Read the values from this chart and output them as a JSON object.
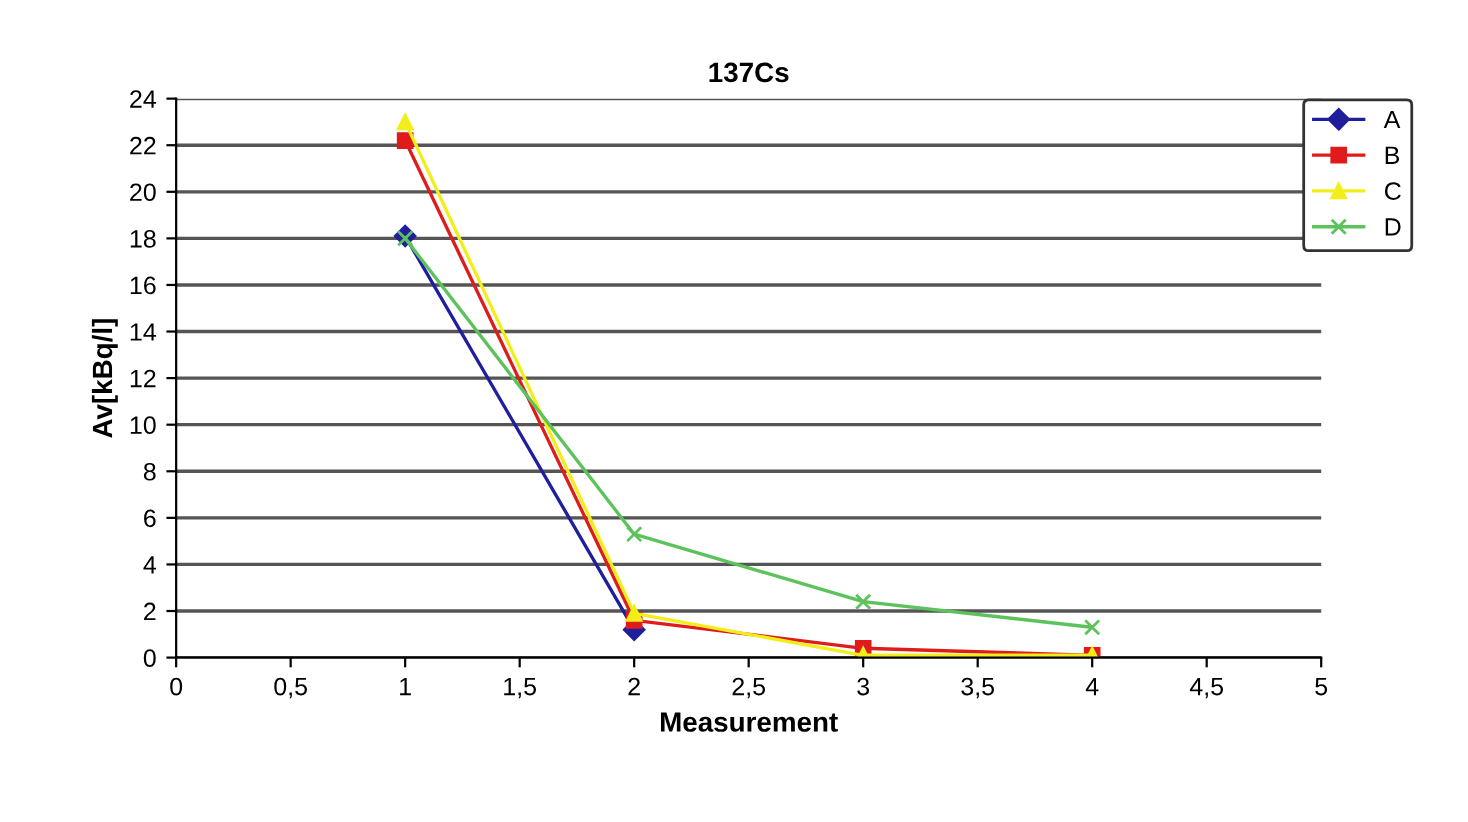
{
  "chart_data": {
    "type": "line",
    "title": "137Cs",
    "xlabel": "Measurement",
    "ylabel": "Av[kBq/l]",
    "x": [
      1,
      2,
      3,
      4
    ],
    "series": [
      {
        "name": "A",
        "color": "#1f1f9e",
        "values": [
          18.1,
          1.2,
          null,
          null
        ],
        "marker": "diamond"
      },
      {
        "name": "B",
        "color": "#e01b1b",
        "values": [
          22.2,
          1.6,
          0.4,
          0.1
        ],
        "marker": "square"
      },
      {
        "name": "C",
        "color": "#f2ee1a",
        "values": [
          23,
          1.9,
          0.1,
          0.1
        ],
        "marker": "triangle"
      },
      {
        "name": "D",
        "color": "#5cc25c",
        "values": [
          18,
          5.3,
          2.4,
          1.3
        ],
        "marker": "cross"
      }
    ],
    "xlim": [
      0,
      5
    ],
    "xticks": [
      0,
      {
        "value": 0.5,
        "label": "0,5"
      },
      1,
      {
        "value": 1.5,
        "label": "1,5"
      },
      2,
      {
        "value": 2.5,
        "label": "2,5"
      },
      3,
      {
        "value": 3.5,
        "label": "3,5"
      },
      4,
      {
        "value": 4.5,
        "label": "4,5"
      },
      5
    ],
    "ylim": [
      0,
      24
    ],
    "yticks": [
      0,
      2,
      4,
      6,
      8,
      10,
      12,
      14,
      16,
      18,
      20,
      22,
      24
    ],
    "grid": "y",
    "legend": "top right",
    "line_style": "solid"
  }
}
